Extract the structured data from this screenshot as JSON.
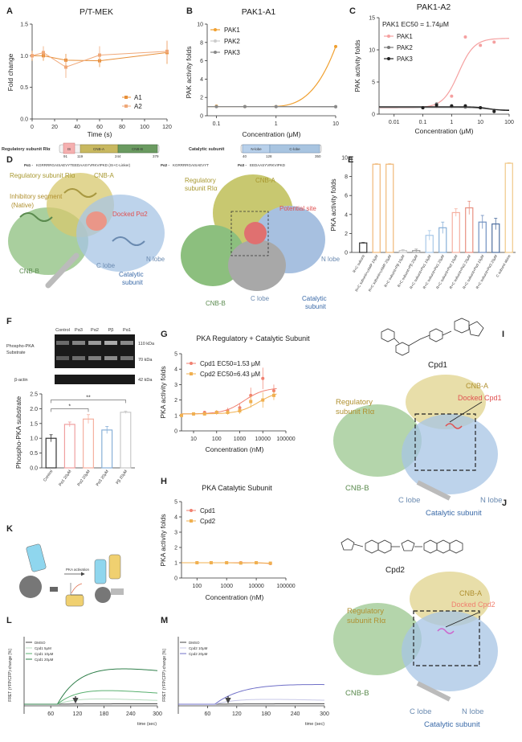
{
  "panel_labels": {
    "A": "A",
    "B": "B",
    "C": "C",
    "D": "D",
    "E": "E",
    "F": "F",
    "G": "G",
    "H": "H",
    "I": "I",
    "J": "J",
    "K": "K",
    "L": "L",
    "M": "M"
  },
  "panel_A": {
    "title": "P/T-MEK",
    "ylabel": "Fold change",
    "xlabel": "Time (s)",
    "xticks": [
      "0",
      "20",
      "40",
      "60",
      "80",
      "100",
      "120"
    ],
    "yticks": [
      "0.0",
      "0.5",
      "1.0",
      "1.5"
    ],
    "colors": {
      "A1": "#e8903a",
      "A2": "#f0a878"
    }
  },
  "panel_B": {
    "title": "PAK1-A1",
    "ylabel": "PAK activity folds",
    "xlabel": "Concentration (μM)",
    "xticks": [
      "0.1",
      "1",
      "10"
    ],
    "yticks": [
      "0",
      "2",
      "4",
      "6",
      "8",
      "10"
    ],
    "colors": {
      "PAK1": "#f0a030",
      "PAK2": "#cccccc",
      "PAK3": "#888888"
    }
  },
  "panel_C": {
    "title": "PAK1-A2",
    "ylabel": "PAK activity folds",
    "xlabel": "Concentration (μM)",
    "annotation": "PAK1 EC50 = 1.74μM",
    "xticks": [
      "0.01",
      "0.1",
      "1",
      "10",
      "100"
    ],
    "yticks": [
      "0",
      "5",
      "10",
      "15"
    ],
    "colors": {
      "PAK1": "#f5a0a0",
      "PAK2": "#777777",
      "PAK3": "#222222"
    }
  },
  "panel_D": {
    "domain_bar": {
      "reg_label": "Regulatory subunit RIα",
      "cat_label": "Catalytic subunit",
      "reg_domains": [
        "IS",
        "CNB-A",
        "CNB-B"
      ],
      "cat_domains": [
        "N-lobe",
        "C-lobe"
      ],
      "reg_nums": [
        "91",
        "119",
        "244",
        "379"
      ],
      "cat_nums": [
        "40",
        "128",
        "350"
      ]
    },
    "peptides": [
      {
        "name": "Pα1 -",
        "seq": "KGRRRRGAISAEVYTEEDAASYVRKVIPKD (IS+C-Linker)"
      },
      {
        "name": "Pα2 -",
        "seq": "KGRRRRGAISAEVYT"
      },
      {
        "name": "Pα3 -",
        "seq": "EEDAASYVRKVIPKD"
      }
    ],
    "left_labels": {
      "reg": "Regulatory subunit RIα",
      "cnba": "CNB-A",
      "inhib": "Inhibitory segment",
      "native": "(Native)",
      "docked": "Docked Pα2",
      "cnbb": "CNB-B",
      "clobe": "C lobe",
      "nlobe": "N lobe",
      "catalytic": "Catalytic",
      "subunit": "subunit"
    },
    "right_labels": {
      "reg1": "Regulatory",
      "reg2": "subunit RIα",
      "cnba": "CNB-A",
      "site": "Potential site",
      "cnbb": "CNB-B",
      "clobe": "C lobe",
      "nlobe": "N lobe",
      "catalytic": "Catalytic",
      "subunit": "subunit"
    }
  },
  "chart_data": [
    {
      "panel": "A",
      "type": "line",
      "title": "P/T-MEK",
      "xlabel": "Time (s)",
      "ylabel": "Fold change",
      "xlim": [
        0,
        120
      ],
      "ylim": [
        0,
        1.5
      ],
      "series": [
        {
          "name": "A1",
          "x": [
            0,
            10,
            30,
            60,
            120
          ],
          "y": [
            1.0,
            1.0,
            0.93,
            0.92,
            1.05
          ],
          "err": [
            0.08,
            0.08,
            0.1,
            0.1,
            0.18
          ],
          "color": "#e8903a"
        },
        {
          "name": "A2",
          "x": [
            0,
            10,
            30,
            60,
            120
          ],
          "y": [
            1.0,
            1.05,
            0.82,
            1.01,
            1.07
          ],
          "err": [
            0.05,
            0.1,
            0.17,
            0.14,
            0.17
          ],
          "color": "#f0a878"
        }
      ]
    },
    {
      "panel": "B",
      "type": "line",
      "title": "PAK1-A1",
      "log_x": true,
      "xlabel": "Concentration (μM)",
      "ylabel": "PAK activity folds",
      "xlim": [
        0.07,
        10
      ],
      "ylim": [
        0,
        10
      ],
      "series": [
        {
          "name": "PAK1",
          "x": [
            0.1,
            0.3,
            1,
            10
          ],
          "y": [
            1.05,
            1.0,
            1.0,
            7.55
          ],
          "color": "#f0a030"
        },
        {
          "name": "PAK2",
          "x": [
            0.1,
            0.3,
            1,
            10
          ],
          "y": [
            1.0,
            1.0,
            1.0,
            0.95
          ],
          "color": "#cccccc"
        },
        {
          "name": "PAK3",
          "x": [
            0.1,
            0.3,
            1,
            10
          ],
          "y": [
            1.0,
            1.0,
            1.0,
            1.0
          ],
          "color": "#888888"
        }
      ]
    },
    {
      "panel": "C",
      "type": "line",
      "title": "PAK1-A2",
      "log_x": true,
      "xlabel": "Concentration (μM)",
      "ylabel": "PAK activity folds",
      "xlim": [
        0.003,
        100
      ],
      "ylim": [
        0,
        15
      ],
      "series": [
        {
          "name": "PAK1",
          "x": [
            0.1,
            0.3,
            1,
            3,
            10,
            30
          ],
          "y": [
            1.0,
            1.2,
            2.8,
            12,
            10.7,
            11.2
          ],
          "color": "#f5a0a0"
        },
        {
          "name": "PAK2",
          "x": [
            0.1,
            0.3,
            1,
            3,
            10,
            30
          ],
          "y": [
            1.0,
            1.6,
            1.2,
            1.1,
            1.0,
            0.6
          ],
          "color": "#777777"
        },
        {
          "name": "PAK3",
          "x": [
            0.1,
            0.3,
            1,
            3,
            10,
            30
          ],
          "y": [
            1.0,
            1.4,
            1.3,
            1.3,
            1.0,
            0.4
          ],
          "color": "#222222"
        }
      ]
    },
    {
      "panel": "E",
      "type": "bar",
      "ylabel": "PKA activity folds",
      "ylim": [
        0,
        10
      ],
      "categories": [
        "R+C subunit",
        "R+C subunit+cAMP 10μM",
        "R+C subunit+cAMP 20μM",
        "R+C subunit+Pβ 10μM",
        "R+C subunit+Pβ 20μM",
        "R+C subunit+Pα1 10μM",
        "R+C subunit+Pα1 20μM",
        "R+C subunit+Pα2 10μM",
        "R+C subunit+Pα2 20μM",
        "R+C subunit+Pα3 10μM",
        "R+C subunit+Pα3 20μM",
        "C subunit alone"
      ],
      "values": [
        1.0,
        9.3,
        9.3,
        0.2,
        0.2,
        1.8,
        2.6,
        4.2,
        4.7,
        3.2,
        3.0,
        9.4
      ],
      "errors": [
        0.05,
        0.05,
        0.05,
        0.1,
        0.15,
        0.5,
        0.6,
        0.4,
        0.7,
        0.7,
        0.6,
        0.05
      ],
      "colors": [
        "#333333",
        "#f0b878",
        "#f0b878",
        "#c8c8c8",
        "#a0a0a0",
        "#a8c8e8",
        "#88b0d8",
        "#f5b0a0",
        "#e89080",
        "#7090c0",
        "#5070a0",
        "#f0c888"
      ]
    },
    {
      "panel": "F",
      "type": "bar",
      "ylabel": "Phospho-PKA substrate",
      "ylim": [
        0,
        2.5
      ],
      "categories": [
        "Control",
        "Pα1 20μM",
        "Pα2 20μM",
        "Pα3 20μM",
        "Pβ 20μM"
      ],
      "values": [
        1.0,
        1.47,
        1.65,
        1.28,
        1.88
      ],
      "errors": [
        0.12,
        0.08,
        0.15,
        0.12,
        0.04
      ],
      "colors": [
        "#333333",
        "#f0a0a0",
        "#f5b0a0",
        "#88b0d8",
        "#c8c8c8"
      ],
      "significance": [
        {
          "from": 0,
          "to": 2,
          "label": "*"
        },
        {
          "from": 0,
          "to": 4,
          "label": "**"
        }
      ]
    },
    {
      "panel": "G",
      "type": "line",
      "title": "PKA Regulatory + Catalytic Subunit",
      "log_x": true,
      "xlabel": "Concentration (nM)",
      "ylabel": "PKA activity folds",
      "xlim": [
        3,
        100000
      ],
      "ylim": [
        0,
        5
      ],
      "series": [
        {
          "name": "Cpd1 EC50=1.53 μM",
          "x": [
            3,
            10,
            30,
            100,
            300,
            1000,
            3000,
            10000,
            30000
          ],
          "y": [
            1.0,
            1.1,
            1.2,
            1.2,
            1.3,
            1.5,
            2.3,
            3.4,
            2.6
          ],
          "err": [
            0.1,
            0.1,
            0.1,
            0.15,
            0.2,
            0.3,
            0.5,
            0.7,
            0.4
          ],
          "color": "#f08070"
        },
        {
          "name": "Cpd2 EC50=6.43 μM",
          "x": [
            3,
            10,
            30,
            100,
            300,
            1000,
            3000,
            10000,
            30000
          ],
          "y": [
            1.0,
            1.1,
            1.1,
            1.2,
            1.2,
            1.3,
            1.9,
            2.0,
            2.3
          ],
          "err": [
            0.1,
            0.1,
            0.1,
            0.1,
            0.15,
            0.2,
            0.4,
            0.5,
            0.3
          ],
          "color": "#f0b050"
        }
      ]
    },
    {
      "panel": "H",
      "type": "line",
      "title": "PKA Catalytic Subunit",
      "log_x": true,
      "xlabel": "Concentration (nM)",
      "ylabel": "PKA activity folds",
      "xlim": [
        30,
        100000
      ],
      "ylim": [
        0,
        5
      ],
      "series": [
        {
          "name": "Cpd1",
          "x": [
            100,
            300,
            1000,
            3000,
            10000,
            30000
          ],
          "y": [
            1.0,
            1.0,
            1.0,
            1.0,
            1.0,
            0.95
          ],
          "color": "#f08070"
        },
        {
          "name": "Cpd2",
          "x": [
            100,
            300,
            1000,
            3000,
            10000,
            30000
          ],
          "y": [
            1.0,
            1.0,
            1.0,
            0.98,
            1.0,
            0.97
          ],
          "color": "#f0b050"
        }
      ]
    },
    {
      "panel": "L",
      "type": "line",
      "xlabel": "time (sec)",
      "ylabel": "FRET (YFP/CFP)-change [%]",
      "xlim": [
        0,
        300
      ],
      "series": [
        {
          "name": "DMSO",
          "color": "#444444"
        },
        {
          "name": "Cpd1 5μM",
          "color": "#b8dcc0"
        },
        {
          "name": "Cpd1 10μM",
          "color": "#5ab070"
        },
        {
          "name": "Cpd1 20μM",
          "color": "#2f7f4a"
        }
      ]
    },
    {
      "panel": "M",
      "type": "line",
      "xlabel": "time (sec)",
      "ylabel": "FRET (YFP/CFP)-change [%]",
      "xlim": [
        0,
        300
      ],
      "series": [
        {
          "name": "DMSO",
          "color": "#444444"
        },
        {
          "name": "Cpd2 10μM",
          "color": "#c8c8e8"
        },
        {
          "name": "Cpd2 20μM",
          "color": "#7070c8"
        }
      ]
    }
  ],
  "panel_E": {
    "ylabel": "PKA activity folds",
    "yticks": [
      "0",
      "2",
      "4",
      "6",
      "8",
      "10"
    ]
  },
  "panel_F": {
    "lanes": [
      "Control",
      "Pα3",
      "Pα2",
      "Pβ",
      "Pα1"
    ],
    "blot_left": [
      "Phospho-PKA",
      "Substrate",
      "β-actin"
    ],
    "blot_right": [
      "110 kDa",
      "70 kDa",
      "42 kDa"
    ],
    "ylabel": "Phospho-PKA substrate",
    "yticks": [
      "0.0",
      "0.5",
      "1.0",
      "1.5",
      "2.0",
      "2.5"
    ],
    "sig1": "*",
    "sig2": "**"
  },
  "panel_G": {
    "title": "PKA Regulatory + Catalytic Subunit",
    "ylabel": "PKA activity folds",
    "xlabel": "Concentration (nM)",
    "leg1": "Cpd1 EC50=1.53 μM",
    "leg2": "Cpd2 EC50=6.43 μM",
    "yticks": [
      "0",
      "1",
      "2",
      "3",
      "4",
      "5"
    ],
    "xticks": [
      "10",
      "100",
      "1000",
      "10000",
      "100000"
    ]
  },
  "panel_H": {
    "title": "PKA Catalytic Subunit",
    "ylabel": "PKA activity folds",
    "xlabel": "Concentration (nM)",
    "leg1": "Cpd1",
    "leg2": "Cpd2",
    "yticks": [
      "0",
      "1",
      "2",
      "3",
      "4",
      "5"
    ],
    "xticks": [
      "100",
      "1000",
      "10000",
      "100000"
    ]
  },
  "panel_I": {
    "name": "Cpd1",
    "cnba": "CNB-A",
    "docked": "Docked Cpd1",
    "reg1": "Regulatory",
    "reg2": "subunit RIα",
    "cnbb": "CNB-B",
    "clobe": "C lobe",
    "nlobe": "N lobe",
    "catalytic": "Catalytic subunit"
  },
  "panel_J": {
    "name": "Cpd2",
    "cnba": "CNB-A",
    "docked": "Docked Cpd2",
    "reg1": "Regulatory",
    "reg2": "subunit RIα",
    "cnbb": "CNB-B",
    "clobe": "C lobe",
    "nlobe": "N lobe",
    "catalytic": "Catalytic subunit"
  },
  "panel_K": {
    "activation": "PKA activation"
  },
  "panel_L": {
    "ylabel": "FRET (YFP/CFP)-change [%]",
    "xlabel": "time (sec)",
    "xticks": [
      "60",
      "120",
      "180",
      "240",
      "300"
    ],
    "legend": [
      "DMSO",
      "Cpd1 5μM",
      "Cpd1 10μM",
      "Cpd1 20μM"
    ]
  },
  "panel_M": {
    "ylabel": "FRET (YFP/CFP)-change [%]",
    "xlabel": "time (sec)",
    "xticks": [
      "60",
      "120",
      "180",
      "240",
      "300"
    ],
    "legend": [
      "DMSO",
      "Cpd2 10μM",
      "Cpd2 20μM"
    ]
  }
}
